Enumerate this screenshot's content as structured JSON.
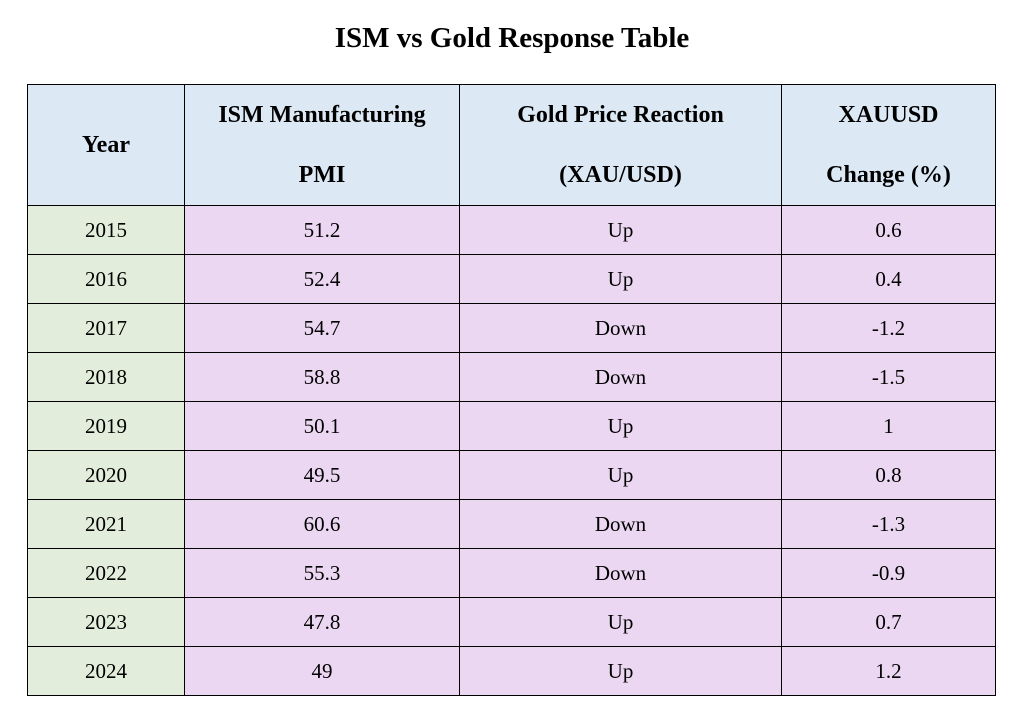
{
  "chart_data": {
    "type": "table",
    "title": "ISM vs Gold Response Table",
    "columns": [
      {
        "lines": [
          "Year"
        ]
      },
      {
        "lines": [
          "ISM Manufacturing",
          "PMI"
        ]
      },
      {
        "lines": [
          "Gold Price Reaction",
          "(XAU/USD)"
        ]
      },
      {
        "lines": [
          "XAUUSD",
          "Change (%)"
        ]
      }
    ],
    "rows": [
      [
        "2015",
        "51.2",
        "Up",
        "0.6"
      ],
      [
        "2016",
        "52.4",
        "Up",
        "0.4"
      ],
      [
        "2017",
        "54.7",
        "Down",
        "-1.2"
      ],
      [
        "2018",
        "58.8",
        "Down",
        "-1.5"
      ],
      [
        "2019",
        "50.1",
        "Up",
        "1"
      ],
      [
        "2020",
        "49.5",
        "Up",
        "0.8"
      ],
      [
        "2021",
        "60.6",
        "Down",
        "-1.3"
      ],
      [
        "2022",
        "55.3",
        "Down",
        "-0.9"
      ],
      [
        "2023",
        "47.8",
        "Up",
        "0.7"
      ],
      [
        "2024",
        "49",
        "Up",
        "1.2"
      ]
    ],
    "colors": {
      "header_bg": "#dce9f5",
      "year_column_bg": "#e2eedb",
      "data_cells_bg": "#ecd7f2"
    }
  }
}
